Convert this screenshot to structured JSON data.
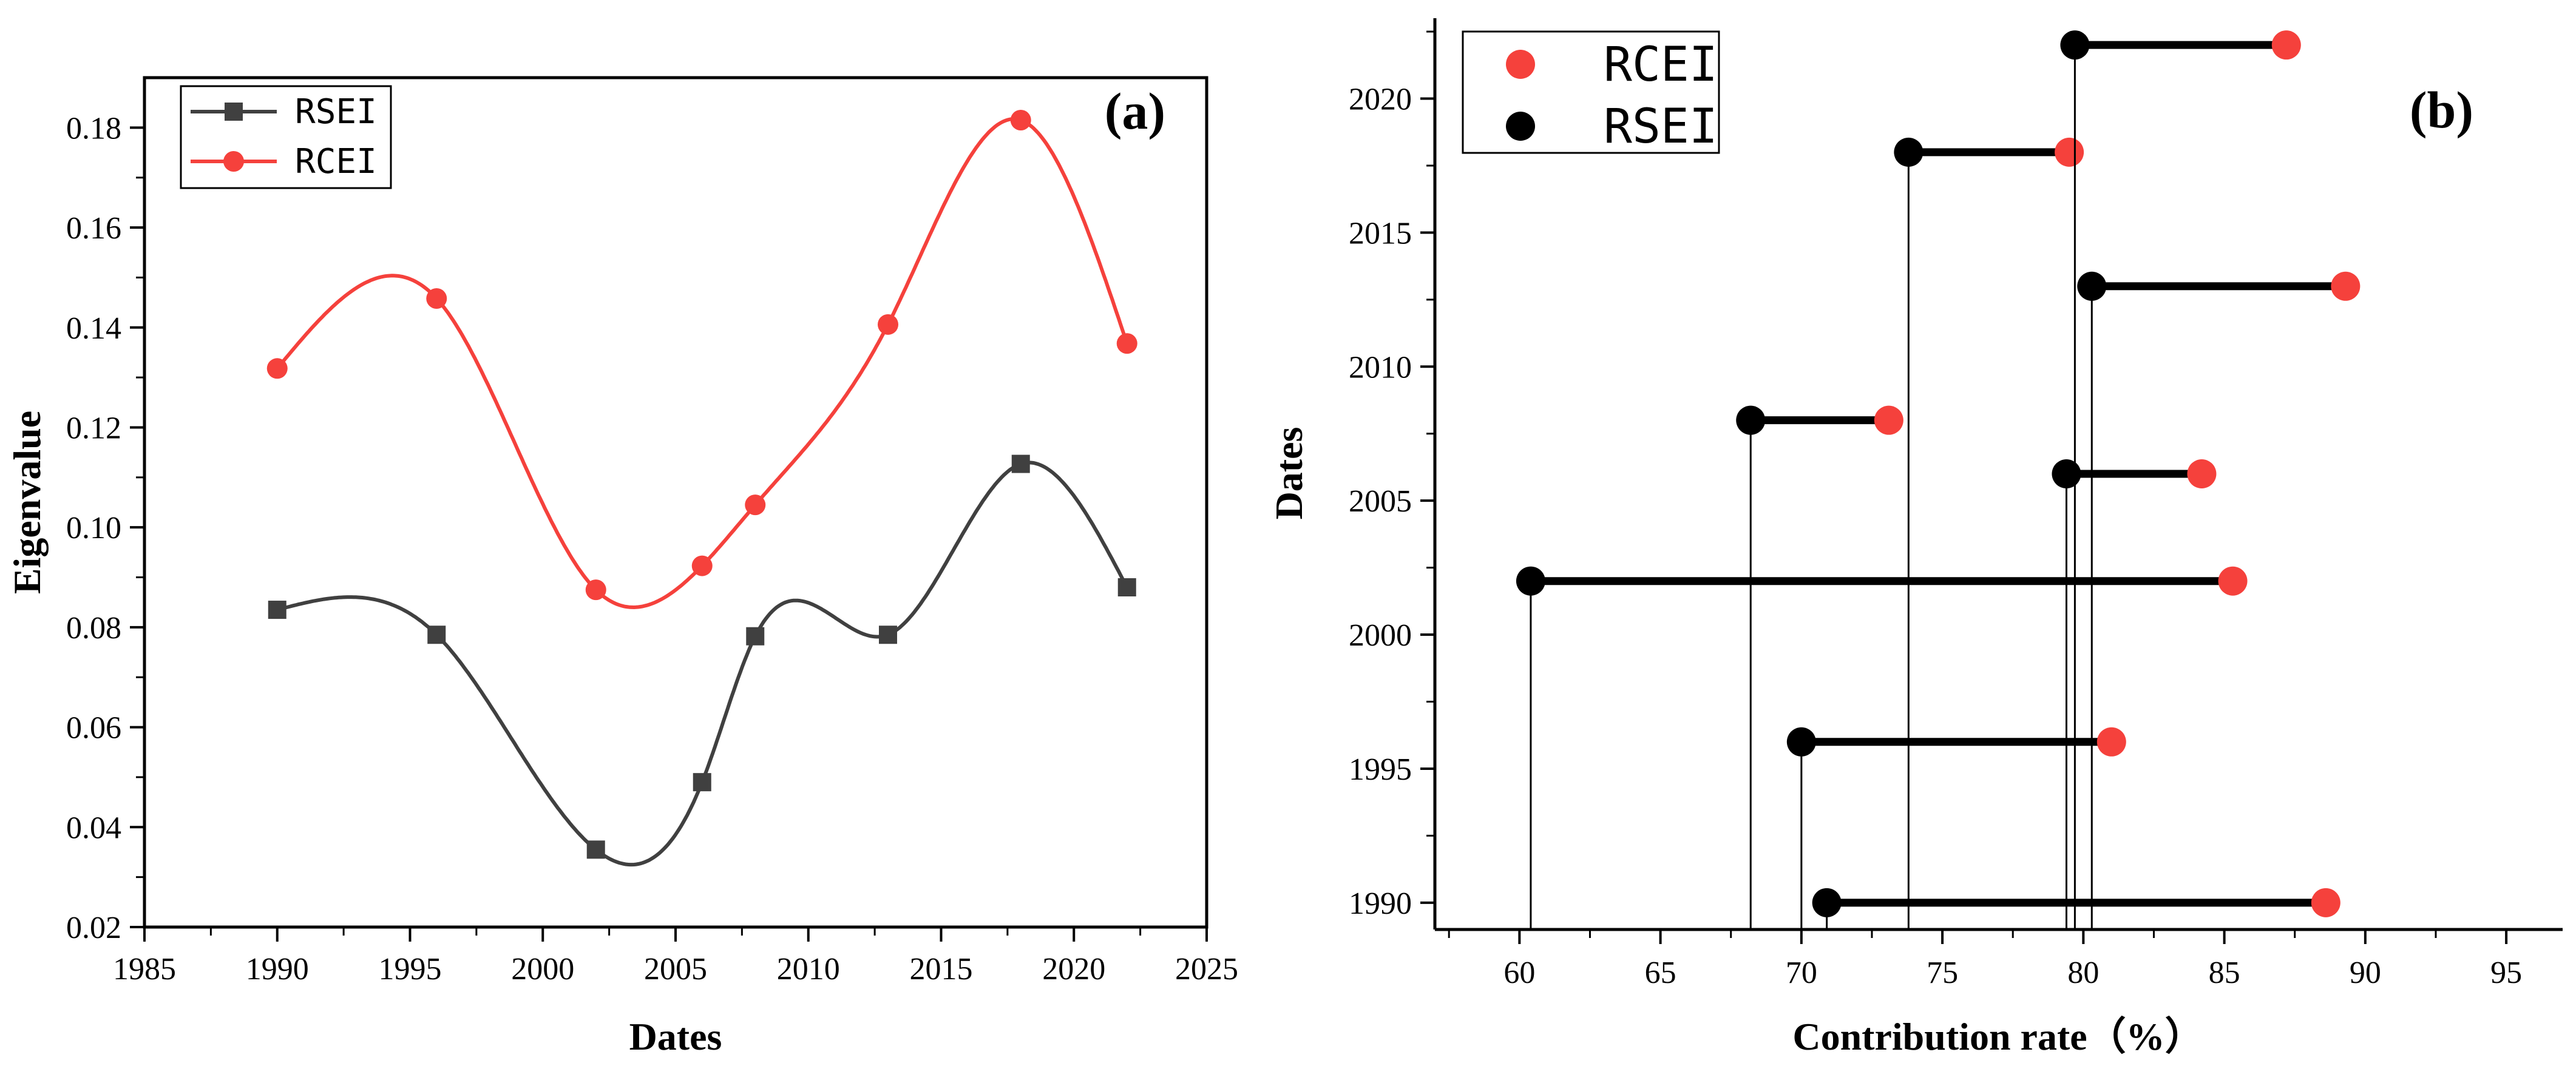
{
  "chart_data": [
    {
      "type": "line",
      "panel_label": "(a)",
      "xlabel": "Dates",
      "ylabel": "Eigenvalue",
      "xlim": [
        1985,
        2025
      ],
      "ylim": [
        0.02,
        0.19
      ],
      "xticks": [
        1985,
        1990,
        1995,
        2000,
        2005,
        2010,
        2015,
        2020,
        2025
      ],
      "xtick_labels": [
        "1985",
        "1990",
        "1995",
        "2000",
        "2005",
        "2010",
        "2015",
        "2020",
        "2025"
      ],
      "yticks": [
        0.02,
        0.04,
        0.06,
        0.08,
        0.1,
        0.12,
        0.14,
        0.16,
        0.18
      ],
      "ytick_labels": [
        "0.02",
        "0.04",
        "0.06",
        "0.08",
        "0.10",
        "0.12",
        "0.14",
        "0.16",
        "0.18"
      ],
      "x": [
        1990,
        1996,
        2002,
        2006,
        2008,
        2013,
        2018,
        2022
      ],
      "series": [
        {
          "name": "RSEI",
          "marker": "square",
          "color": "#404040",
          "values": [
            0.0835,
            0.0785,
            0.0355,
            0.049,
            0.0782,
            0.0785,
            0.1127,
            0.088
          ]
        },
        {
          "name": "RCEI",
          "marker": "circle",
          "color": "#f5413c",
          "values": [
            0.1318,
            0.1458,
            0.0875,
            0.0923,
            0.1045,
            0.1406,
            0.1815,
            0.1368
          ]
        }
      ],
      "legend": {
        "position": "top-left",
        "entries": [
          "RSEI",
          "RCEI"
        ]
      },
      "grid": false
    },
    {
      "type": "dumbbell",
      "panel_label": "(b)",
      "xlabel": "Contribution rate（%）",
      "ylabel": "Dates",
      "xlim": [
        57,
        97
      ],
      "ylim": [
        1989,
        2023
      ],
      "xticks": [
        60,
        65,
        70,
        75,
        80,
        85,
        90,
        95
      ],
      "xtick_labels": [
        "60",
        "65",
        "70",
        "75",
        "80",
        "85",
        "90",
        "95"
      ],
      "yticks": [
        1990,
        1995,
        2000,
        2005,
        2010,
        2015,
        2020
      ],
      "ytick_labels": [
        "1990",
        "1995",
        "2000",
        "2005",
        "2010",
        "2015",
        "2020"
      ],
      "dates": [
        1990,
        1996,
        2002,
        2006,
        2008,
        2013,
        2018,
        2022
      ],
      "series": [
        {
          "name": "RCEI",
          "color": "#f5413c",
          "values": [
            88.6,
            81.0,
            85.3,
            84.2,
            73.1,
            89.3,
            79.5,
            87.2
          ]
        },
        {
          "name": "RSEI",
          "color": "#000000",
          "values": [
            70.9,
            70.0,
            60.4,
            79.4,
            68.2,
            80.3,
            73.8,
            79.7
          ]
        }
      ],
      "legend": {
        "position": "top-left",
        "entries": [
          "RCEI",
          "RSEI"
        ]
      },
      "grid": false
    }
  ]
}
